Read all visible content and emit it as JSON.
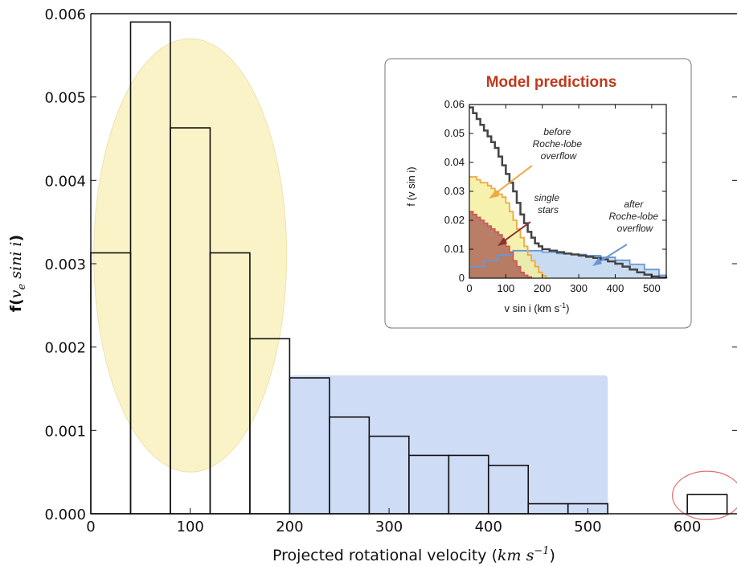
{
  "chart_data": {
    "type": "bar",
    "xlabel": "Projected rotational velocity",
    "xlabel_unit_base": "km s",
    "xlabel_unit_exp": "−1",
    "ylabel_prefix": "f(",
    "ylabel_math": "v",
    "ylabel_sub": "e",
    "ylabel_math2": " sini i",
    "ylabel_suffix": ")",
    "xlim": [
      0,
      650
    ],
    "ylim": [
      0,
      0.006
    ],
    "x_ticks": [
      "0",
      "100",
      "200",
      "300",
      "400",
      "500",
      "600"
    ],
    "y_ticks": [
      "0.000",
      "0.001",
      "0.002",
      "0.003",
      "0.004",
      "0.005",
      "0.006"
    ],
    "bin_edges": [
      0,
      40,
      80,
      120,
      160,
      200,
      240,
      280,
      320,
      360,
      400,
      440,
      480,
      520,
      560,
      600,
      640
    ],
    "values": [
      0.00313,
      0.0059,
      0.00463,
      0.00313,
      0.0021,
      0.00163,
      0.00116,
      0.00093,
      0.0007,
      0.0007,
      0.00058,
      0.00012,
      0.00012,
      0,
      0,
      0.00023
    ],
    "highlights": [
      {
        "shape": "ellipse",
        "color": "#fbf3c8",
        "cx": 100,
        "cy": 0.0031,
        "rx": 97,
        "ry": 0.0026
      },
      {
        "shape": "rect",
        "color": "#cfdcf6",
        "x0": 200,
        "x1": 520,
        "y0": 0,
        "y1": 0.00166
      },
      {
        "shape": "ellipse-outline",
        "color": "#e07070",
        "cx": 620,
        "cy": 0.00022,
        "rx": 35,
        "ry": 0.00029
      }
    ],
    "inset": {
      "title": "Model predictions",
      "title_color": "#c0391b",
      "xlabel_base": "v sin i (km s",
      "xlabel_exp": "-1",
      "xlabel_close": ")",
      "ylabel": "f (v sin i)",
      "xlim": [
        0,
        540
      ],
      "ylim": [
        0,
        0.06
      ],
      "x_ticks": [
        "0",
        "100",
        "200",
        "300",
        "400",
        "500"
      ],
      "y_ticks": [
        "0",
        "0.01",
        "0.02",
        "0.03",
        "0.04",
        "0.05",
        "0.06"
      ],
      "series": [
        {
          "role": "total",
          "color": "#444444",
          "x": [
            0,
            10,
            20,
            30,
            40,
            50,
            60,
            70,
            80,
            90,
            100,
            110,
            120,
            130,
            140,
            150,
            160,
            170,
            180,
            190,
            200,
            220,
            240,
            260,
            280,
            300,
            320,
            340,
            360,
            380,
            400,
            420,
            440,
            460,
            480,
            500,
            520,
            540
          ],
          "y": [
            0.059,
            0.057,
            0.055,
            0.053,
            0.051,
            0.049,
            0.047,
            0.045,
            0.042,
            0.039,
            0.036,
            0.033,
            0.03,
            0.026,
            0.022,
            0.019,
            0.016,
            0.014,
            0.012,
            0.011,
            0.01,
            0.0095,
            0.009,
            0.0085,
            0.0082,
            0.0078,
            0.0074,
            0.007,
            0.0065,
            0.0058,
            0.005,
            0.004,
            0.003,
            0.002,
            0.0012,
            0.0006,
            0.0002,
            0
          ]
        },
        {
          "role": "before",
          "color": "#f0a841",
          "fill": "#f4ef9a",
          "x": [
            0,
            10,
            20,
            30,
            40,
            50,
            60,
            70,
            80,
            90,
            100,
            110,
            120,
            130,
            140,
            150,
            160,
            170,
            180,
            190,
            200,
            210
          ],
          "y": [
            0.035,
            0.035,
            0.034,
            0.033,
            0.033,
            0.032,
            0.031,
            0.03,
            0.029,
            0.028,
            0.026,
            0.023,
            0.02,
            0.017,
            0.014,
            0.011,
            0.008,
            0.006,
            0.004,
            0.002,
            0.0008,
            0
          ]
        },
        {
          "role": "single",
          "color": "#c95a5a",
          "fill": "#a4574c",
          "x": [
            0,
            10,
            20,
            30,
            40,
            50,
            60,
            70,
            80,
            90,
            100,
            110,
            120,
            130,
            140,
            150,
            160,
            170
          ],
          "y": [
            0.023,
            0.022,
            0.021,
            0.02,
            0.019,
            0.018,
            0.017,
            0.016,
            0.015,
            0.013,
            0.011,
            0.009,
            0.006,
            0.004,
            0.002,
            0.001,
            0.0004,
            0
          ]
        },
        {
          "role": "after",
          "color": "#6a97d6",
          "fill": "#bcd2ee",
          "x": [
            0,
            40,
            80,
            120,
            160,
            200,
            240,
            280,
            320,
            360,
            400,
            440,
            480,
            520,
            540
          ],
          "y": [
            0.004,
            0.006,
            0.008,
            0.0095,
            0.0095,
            0.009,
            0.0085,
            0.0082,
            0.0078,
            0.0072,
            0.0062,
            0.0048,
            0.003,
            0.001,
            0
          ]
        }
      ],
      "annotations": {
        "before": [
          "before",
          "Roche-lobe",
          "overflow"
        ],
        "single": [
          "single",
          "stars"
        ],
        "after": [
          "after",
          "Roche-lobe",
          "overflow"
        ]
      }
    }
  }
}
